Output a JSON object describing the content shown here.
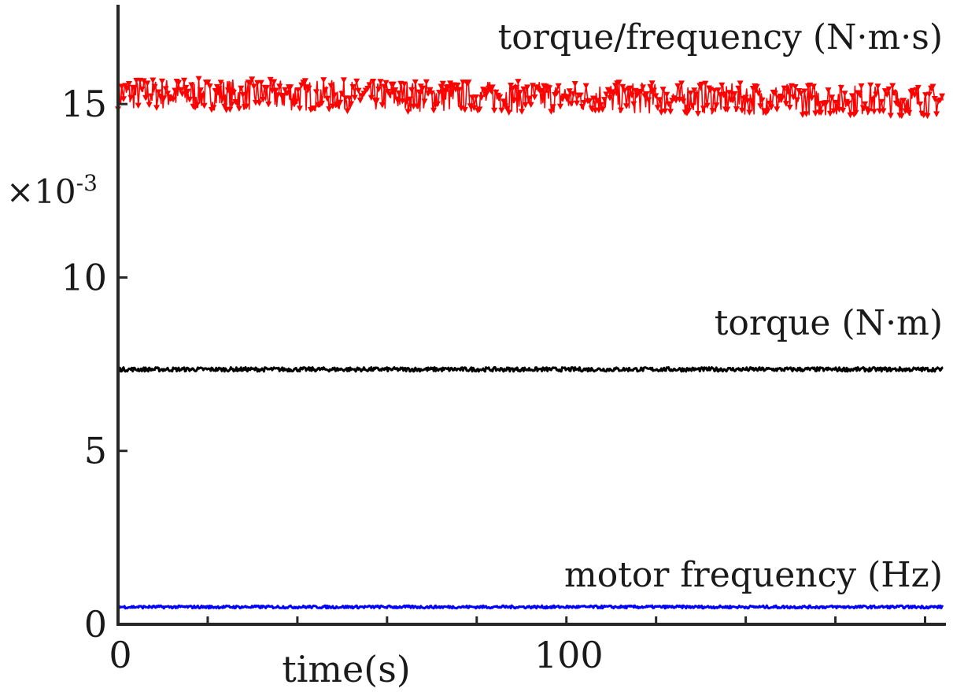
{
  "chart_data": {
    "type": "line",
    "xlabel": "time(s)",
    "ylabel": "",
    "y_multiplier": {
      "base": "×10",
      "exponent": "-3"
    },
    "xlim": [
      0,
      185
    ],
    "ylim": [
      0,
      18
    ],
    "x_ticks": [
      0,
      20,
      40,
      60,
      80,
      100,
      120,
      140,
      160,
      180
    ],
    "x_tick_labels": [
      {
        "value": 0,
        "label": "0"
      },
      {
        "value": 100,
        "label": "100"
      }
    ],
    "y_ticks": [
      {
        "value": 0,
        "label": "0"
      },
      {
        "value": 5,
        "label": "5"
      },
      {
        "value": 10,
        "label": "10"
      },
      {
        "value": 15,
        "label": "15"
      }
    ],
    "grid": false,
    "series": [
      {
        "name": "torque/frequency (N·m·s)",
        "color": "#ff0000",
        "marker": "triangle-down",
        "x_start": 0,
        "x_end": 184,
        "mean_start": 15.3,
        "mean_end": 15.1,
        "spread": 0.45
      },
      {
        "name": "torque (N·m)",
        "color": "#000000",
        "marker": "none",
        "x_start": 0,
        "x_end": 184,
        "mean_start": 7.35,
        "mean_end": 7.35,
        "spread": 0.06
      },
      {
        "name": "motor frequency (Hz)",
        "color": "#0000ff",
        "marker": "none",
        "x_start": 0,
        "x_end": 184,
        "mean_start": 0.5,
        "mean_end": 0.5,
        "spread": 0.04
      }
    ]
  }
}
